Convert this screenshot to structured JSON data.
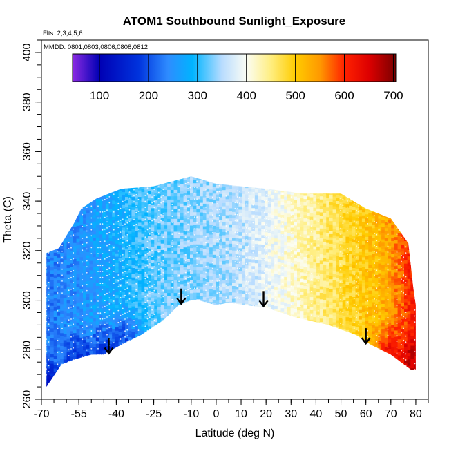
{
  "chart_data": {
    "type": "heatmap",
    "title": "ATOM1 Southbound Sunlight_Exposure",
    "subtitle": "Flts: 2,3,4,5,6",
    "annotation": "MMDD: 0801,0803,0806,0808,0812",
    "xlabel": "Latitude (deg N)",
    "ylabel": "Theta (C)",
    "xlim": [
      -70,
      85
    ],
    "ylim": [
      260,
      405
    ],
    "x_ticks": [
      -70,
      -55,
      -40,
      -25,
      -10,
      0,
      10,
      20,
      30,
      40,
      50,
      60,
      70,
      80
    ],
    "y_ticks": [
      260,
      280,
      300,
      320,
      340,
      360,
      380,
      400
    ],
    "grid": false,
    "colorbar": {
      "position": "top",
      "range": [
        45,
        705
      ],
      "ticks": [
        100,
        200,
        300,
        400,
        500,
        600,
        700
      ],
      "stops": [
        {
          "value": 45,
          "color": "#8b2be2"
        },
        {
          "value": 100,
          "color": "#0000b4"
        },
        {
          "value": 180,
          "color": "#0033dd"
        },
        {
          "value": 240,
          "color": "#2e8cff"
        },
        {
          "value": 290,
          "color": "#00b4ff"
        },
        {
          "value": 350,
          "color": "#b8dcff"
        },
        {
          "value": 400,
          "color": "#fbfdf4"
        },
        {
          "value": 450,
          "color": "#ffee80"
        },
        {
          "value": 500,
          "color": "#ffcc00"
        },
        {
          "value": 550,
          "color": "#ff9900"
        },
        {
          "value": 600,
          "color": "#ff2200"
        },
        {
          "value": 650,
          "color": "#dd0000"
        },
        {
          "value": 705,
          "color": "#7a0000"
        }
      ]
    },
    "data_top_boundary": [
      {
        "lat": -68,
        "theta": 319
      },
      {
        "lat": -63,
        "theta": 321
      },
      {
        "lat": -60,
        "theta": 326
      },
      {
        "lat": -57,
        "theta": 331
      },
      {
        "lat": -54,
        "theta": 337
      },
      {
        "lat": -48,
        "theta": 341
      },
      {
        "lat": -38,
        "theta": 345
      },
      {
        "lat": -25,
        "theta": 346
      },
      {
        "lat": -10,
        "theta": 350
      },
      {
        "lat": 0,
        "theta": 347
      },
      {
        "lat": 10,
        "theta": 346
      },
      {
        "lat": 20,
        "theta": 345
      },
      {
        "lat": 35,
        "theta": 343
      },
      {
        "lat": 50,
        "theta": 343
      },
      {
        "lat": 60,
        "theta": 337
      },
      {
        "lat": 70,
        "theta": 333
      },
      {
        "lat": 77,
        "theta": 323
      },
      {
        "lat": 79,
        "theta": 305
      },
      {
        "lat": 80,
        "theta": 298
      }
    ],
    "data_bottom_boundary": [
      {
        "lat": -68,
        "theta": 265
      },
      {
        "lat": -62,
        "theta": 274
      },
      {
        "lat": -57,
        "theta": 276
      },
      {
        "lat": -50,
        "theta": 278
      },
      {
        "lat": -45,
        "theta": 278
      },
      {
        "lat": -40,
        "theta": 281
      },
      {
        "lat": -30,
        "theta": 286
      },
      {
        "lat": -21,
        "theta": 292
      },
      {
        "lat": -15,
        "theta": 298
      },
      {
        "lat": -10,
        "theta": 300
      },
      {
        "lat": -7,
        "theta": 300
      },
      {
        "lat": 0,
        "theta": 298
      },
      {
        "lat": 5,
        "theta": 299
      },
      {
        "lat": 12,
        "theta": 298
      },
      {
        "lat": 20,
        "theta": 297
      },
      {
        "lat": 32,
        "theta": 293
      },
      {
        "lat": 45,
        "theta": 290
      },
      {
        "lat": 56,
        "theta": 286
      },
      {
        "lat": 62,
        "theta": 282
      },
      {
        "lat": 70,
        "theta": 278
      },
      {
        "lat": 78,
        "theta": 272
      },
      {
        "lat": 80,
        "theta": 272
      }
    ],
    "value_by_latitude": [
      {
        "lat": -68,
        "value": 230
      },
      {
        "lat": -55,
        "value": 250
      },
      {
        "lat": -45,
        "value": 270
      },
      {
        "lat": -35,
        "value": 300
      },
      {
        "lat": -25,
        "value": 320
      },
      {
        "lat": -15,
        "value": 330
      },
      {
        "lat": -5,
        "value": 340
      },
      {
        "lat": 5,
        "value": 350
      },
      {
        "lat": 15,
        "value": 370
      },
      {
        "lat": 25,
        "value": 400
      },
      {
        "lat": 35,
        "value": 430
      },
      {
        "lat": 45,
        "value": 460
      },
      {
        "lat": 55,
        "value": 490
      },
      {
        "lat": 65,
        "value": 520
      },
      {
        "lat": 72,
        "value": 560
      },
      {
        "lat": 78,
        "value": 610
      },
      {
        "lat": 80,
        "value": 640
      }
    ],
    "value_low_theta_adjust": [
      {
        "lat": -68,
        "theta": 265,
        "value": 120
      },
      {
        "lat": -55,
        "theta": 276,
        "value": 160
      },
      {
        "lat": -45,
        "theta": 280,
        "value": 160
      },
      {
        "lat": -38,
        "theta": 285,
        "value": 190
      },
      {
        "lat": 70,
        "theta": 278,
        "value": 640
      },
      {
        "lat": 78,
        "theta": 275,
        "value": 670
      }
    ],
    "arrows": [
      {
        "lat": -43,
        "theta": 278
      },
      {
        "lat": -14,
        "theta": 298
      },
      {
        "lat": 19,
        "theta": 297
      },
      {
        "lat": 60,
        "theta": 282
      }
    ]
  }
}
